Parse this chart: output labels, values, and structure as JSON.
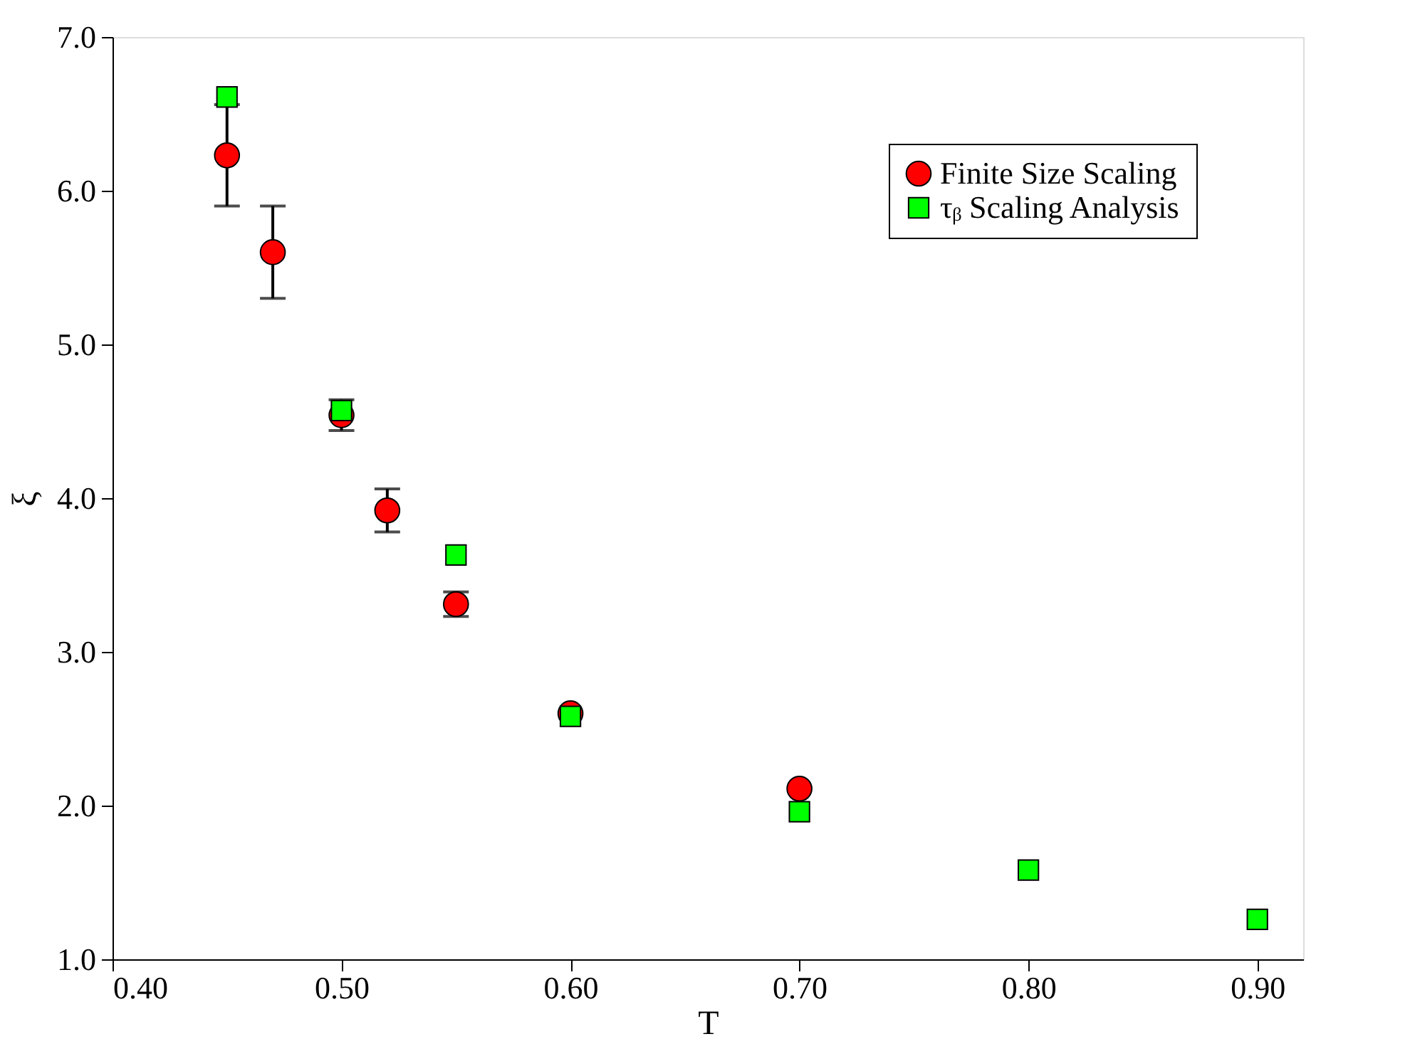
{
  "chart_data": {
    "type": "scatter",
    "xlabel": "T",
    "ylabel": "ξ",
    "xlim": [
      0.4,
      0.92
    ],
    "ylim": [
      1.0,
      7.0
    ],
    "xticks": [
      {
        "value": 0.4,
        "label": "0.40"
      },
      {
        "value": 0.5,
        "label": "0.50"
      },
      {
        "value": 0.6,
        "label": "0.60"
      },
      {
        "value": 0.7,
        "label": "0.70"
      },
      {
        "value": 0.8,
        "label": "0.80"
      },
      {
        "value": 0.9,
        "label": "0.90"
      }
    ],
    "yticks": [
      {
        "value": 1,
        "label": "1.0"
      },
      {
        "value": 2,
        "label": "2.0"
      },
      {
        "value": 3,
        "label": "3.0"
      },
      {
        "value": 4,
        "label": "4.0"
      },
      {
        "value": 5,
        "label": "5.0"
      },
      {
        "value": 6,
        "label": "6.0"
      },
      {
        "value": 7,
        "label": "7.0"
      }
    ],
    "grid": false,
    "legend": "top right",
    "series": [
      {
        "name": "Finite Size Scaling",
        "color": "#ff0000",
        "marker": "circle",
        "x": [
          0.45,
          0.47,
          0.5,
          0.52,
          0.55,
          0.6,
          0.7
        ],
        "values": [
          6.23,
          5.6,
          4.54,
          3.92,
          3.31,
          2.6,
          2.11
        ],
        "errors": [
          0.33,
          0.3,
          0.1,
          0.14,
          0.08,
          null,
          null
        ]
      },
      {
        "name": "τᵦ Scaling Analysis",
        "color": "#00ff00",
        "marker": "square",
        "x": [
          0.45,
          0.5,
          0.55,
          0.6,
          0.7,
          0.8,
          0.9
        ],
        "values": [
          6.61,
          4.57,
          3.63,
          2.58,
          1.96,
          1.58,
          1.26
        ]
      }
    ]
  }
}
